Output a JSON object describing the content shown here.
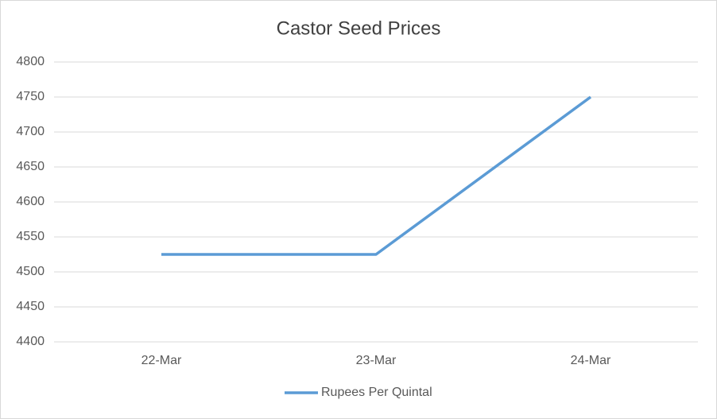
{
  "chart_data": {
    "type": "line",
    "title": "Castor Seed Prices",
    "categories": [
      "22-Mar",
      "23-Mar",
      "24-Mar"
    ],
    "series": [
      {
        "name": "Rupees Per Quintal",
        "color": "#5b9bd5",
        "values": [
          4525,
          4525,
          4750
        ]
      }
    ],
    "ylim": [
      4400,
      4800
    ],
    "yticks": [
      4400,
      4450,
      4500,
      4550,
      4600,
      4650,
      4700,
      4750,
      4800
    ],
    "grid": true,
    "legend": "bottom"
  }
}
